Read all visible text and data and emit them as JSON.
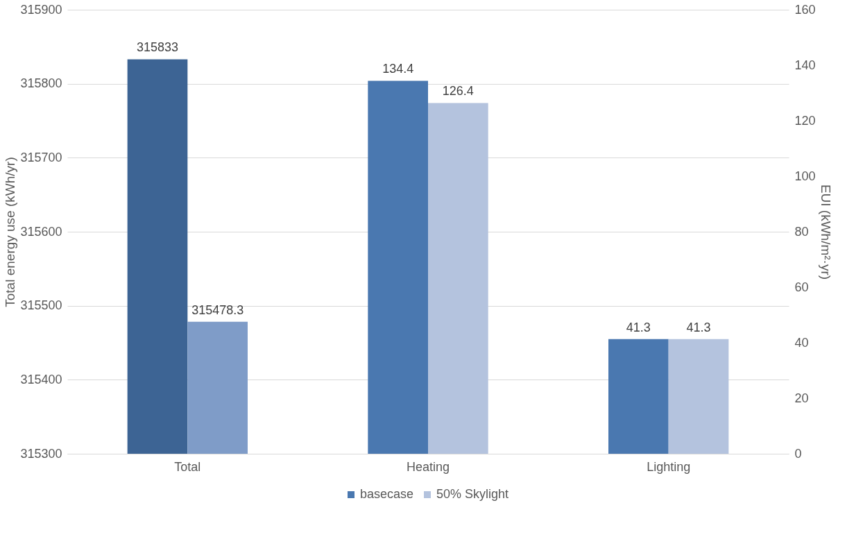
{
  "chart_data": {
    "type": "bar",
    "categories": [
      "Total",
      "Heating",
      "Lighting"
    ],
    "series": [
      {
        "color": "#3d6494",
        "values": [
          315833,
          null,
          null
        ],
        "axis": "y"
      },
      {
        "color": "#7f9cc8",
        "values": [
          315478.3,
          null,
          null
        ],
        "axis": "y"
      },
      {
        "name": "basecase",
        "color": "#4a78b0",
        "values": [
          null,
          134.4,
          41.3
        ],
        "axis": "y2"
      },
      {
        "name": "50% Skylight",
        "color": "#b4c3de",
        "values": [
          null,
          126.4,
          41.3
        ],
        "axis": "y2"
      }
    ],
    "ylabel": "Total energy use (kWh/yr)",
    "y2label": "EUI (kWh/m²·yr)",
    "ylim": [
      315300,
      315900
    ],
    "yticks": [
      315300,
      315400,
      315500,
      315600,
      315700,
      315800,
      315900
    ],
    "y2lim": [
      0,
      160
    ],
    "y2ticks": [
      0,
      20,
      40,
      60,
      80,
      100,
      120,
      140,
      160
    ],
    "grid": "y",
    "legend": "bottom",
    "data_labels": true
  }
}
